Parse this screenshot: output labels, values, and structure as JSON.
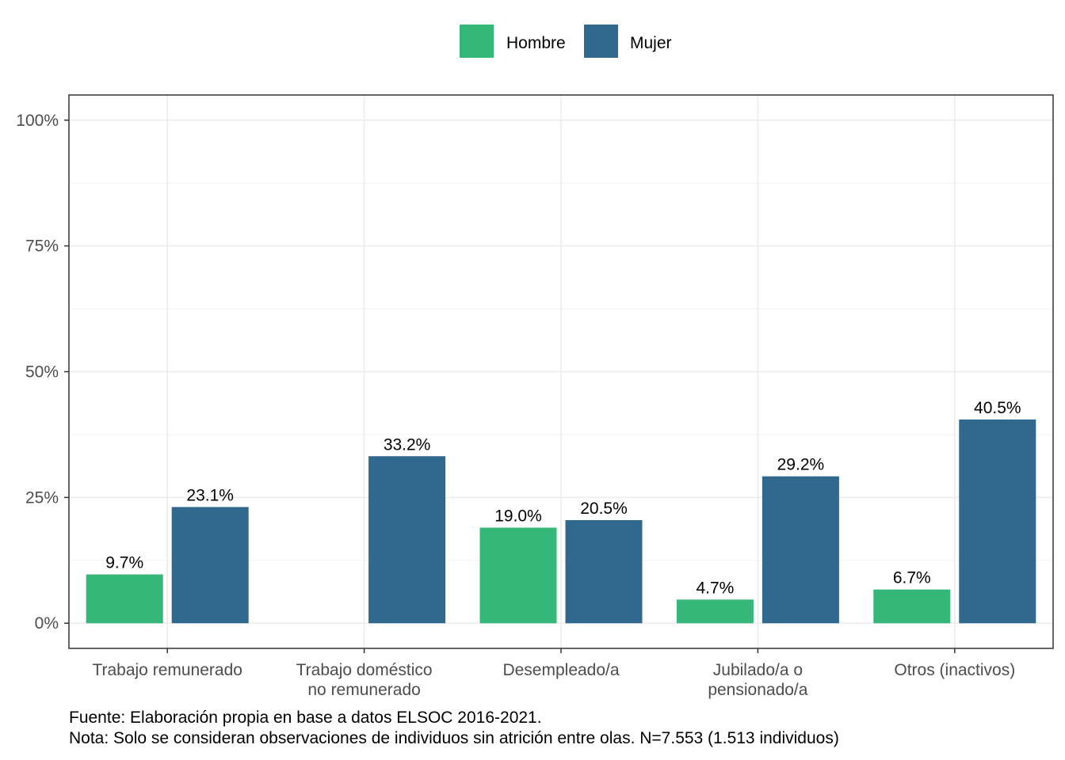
{
  "chart_data": {
    "type": "bar",
    "categories": [
      [
        "Trabajo remunerado"
      ],
      [
        "Trabajo doméstico",
        "no remunerado"
      ],
      [
        "Desempleado/a"
      ],
      [
        "Jubilado/a o",
        "pensionado/a"
      ],
      [
        "Otros (inactivos)"
      ]
    ],
    "series": [
      {
        "name": "Hombre",
        "color": "#35b779",
        "values": [
          9.7,
          null,
          19.0,
          4.7,
          6.7
        ],
        "labels": [
          "9.7%",
          "",
          "19.0%",
          "4.7%",
          "6.7%"
        ]
      },
      {
        "name": "Mujer",
        "color": "#31688e",
        "values": [
          23.1,
          33.2,
          20.5,
          29.2,
          40.5
        ],
        "labels": [
          "23.1%",
          "33.2%",
          "20.5%",
          "29.2%",
          "40.5%"
        ]
      }
    ],
    "yticks": [
      0,
      25,
      50,
      75,
      100
    ],
    "ytick_labels": [
      "0%",
      "25%",
      "50%",
      "75%",
      "100%"
    ],
    "ylim": [
      -5,
      105
    ],
    "grid": true,
    "legend_position": "top"
  },
  "caption": {
    "source": "Fuente: Elaboración propia en base a datos ELSOC 2016-2021.",
    "note": "Nota: Solo se consideran observaciones de individuos sin atrición entre olas. N=7.553 (1.513 individuos)"
  }
}
